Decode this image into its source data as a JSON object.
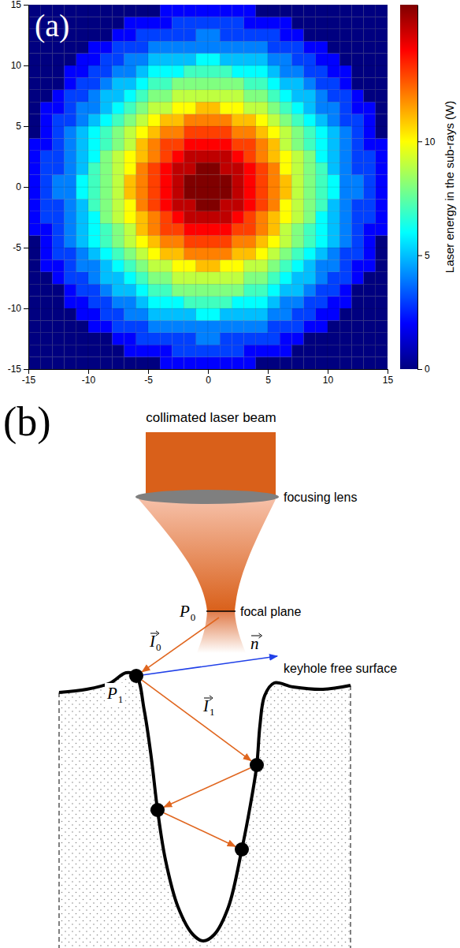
{
  "chart_data": {
    "type": "heatmap",
    "annotations": [
      "(a)"
    ],
    "colorbar_label": "Laser energy in the sub-rays (W)",
    "color": "jet",
    "xlim": [
      -15,
      15
    ],
    "ylim": [
      -15,
      15
    ],
    "xticks": [
      -15,
      -10,
      -5,
      0,
      5,
      10,
      15
    ],
    "yticks": [
      -15,
      -10,
      -5,
      0,
      5,
      10,
      15
    ],
    "clim": [
      0,
      16
    ],
    "cticks": [
      0,
      5,
      10
    ],
    "x_edges": [
      -15,
      -14,
      -13,
      -12,
      -11,
      -10,
      -9,
      -8,
      -7,
      -6,
      -5,
      -4,
      -3,
      -2,
      -1,
      0,
      1,
      2,
      3,
      4,
      5,
      6,
      7,
      8,
      9,
      10,
      11,
      12,
      13,
      14,
      15
    ],
    "y_edges": [
      -15,
      -14,
      -13,
      -12,
      -11,
      -10,
      -9,
      -8,
      -7,
      -6,
      -5,
      -4,
      -3,
      -2,
      -1,
      0,
      1,
      2,
      3,
      4,
      5,
      6,
      7,
      8,
      9,
      10,
      11,
      12,
      13,
      14,
      15
    ],
    "values": [
      [
        0,
        0,
        0,
        0,
        0,
        0,
        0,
        0,
        0,
        0,
        0,
        2,
        2,
        2,
        2,
        2,
        2,
        2,
        2,
        0,
        0,
        0,
        0,
        0,
        0,
        0,
        0,
        0,
        0,
        0
      ],
      [
        0,
        0,
        0,
        0,
        0,
        0,
        0,
        0,
        2,
        2,
        2,
        2,
        3,
        3,
        3,
        3,
        3,
        3,
        2,
        2,
        2,
        2,
        0,
        0,
        0,
        0,
        0,
        0,
        0,
        0
      ],
      [
        0,
        0,
        0,
        0,
        0,
        0,
        0,
        2,
        2,
        3,
        3,
        3,
        3,
        3,
        4,
        4,
        3,
        3,
        3,
        3,
        3,
        2,
        2,
        0,
        0,
        0,
        0,
        0,
        0,
        0
      ],
      [
        0,
        0,
        0,
        0,
        0,
        2,
        2,
        3,
        3,
        3,
        4,
        4,
        4,
        4,
        4,
        4,
        4,
        4,
        4,
        4,
        3,
        3,
        3,
        2,
        2,
        0,
        0,
        0,
        0,
        0
      ],
      [
        0,
        0,
        0,
        0,
        2,
        2,
        3,
        3,
        4,
        4,
        5,
        5,
        5,
        5,
        6,
        6,
        5,
        5,
        5,
        5,
        4,
        4,
        3,
        3,
        2,
        2,
        0,
        0,
        0,
        0
      ],
      [
        0,
        0,
        0,
        2,
        2,
        3,
        3,
        4,
        4,
        5,
        6,
        6,
        6,
        7,
        7,
        7,
        7,
        6,
        6,
        6,
        5,
        4,
        4,
        3,
        3,
        2,
        2,
        0,
        0,
        0
      ],
      [
        0,
        0,
        0,
        2,
        3,
        3,
        4,
        5,
        5,
        6,
        7,
        7,
        8,
        8,
        8,
        8,
        8,
        8,
        7,
        7,
        6,
        5,
        5,
        4,
        3,
        3,
        2,
        0,
        0,
        0
      ],
      [
        0,
        0,
        2,
        3,
        3,
        4,
        5,
        5,
        6,
        7,
        8,
        8,
        9,
        9,
        9,
        9,
        9,
        9,
        8,
        8,
        7,
        6,
        5,
        5,
        4,
        3,
        3,
        2,
        0,
        0
      ],
      [
        0,
        2,
        2,
        3,
        4,
        4,
        5,
        6,
        7,
        8,
        9,
        9,
        10,
        10,
        11,
        11,
        10,
        10,
        9,
        9,
        8,
        7,
        6,
        5,
        4,
        4,
        3,
        2,
        2,
        0
      ],
      [
        0,
        2,
        3,
        3,
        4,
        5,
        6,
        7,
        8,
        9,
        10,
        11,
        11,
        12,
        12,
        12,
        12,
        11,
        11,
        10,
        9,
        8,
        7,
        6,
        5,
        4,
        3,
        3,
        2,
        0
      ],
      [
        0,
        2,
        3,
        4,
        5,
        6,
        7,
        8,
        9,
        10,
        11,
        12,
        12,
        13,
        13,
        13,
        13,
        12,
        12,
        11,
        10,
        9,
        8,
        7,
        6,
        5,
        4,
        3,
        2,
        0
      ],
      [
        2,
        2,
        3,
        4,
        5,
        6,
        7,
        8,
        9,
        11,
        12,
        13,
        13,
        14,
        14,
        14,
        14,
        13,
        13,
        12,
        11,
        9,
        8,
        7,
        6,
        5,
        4,
        3,
        2,
        2
      ],
      [
        2,
        3,
        3,
        4,
        5,
        6,
        8,
        9,
        10,
        11,
        12,
        13,
        14,
        15,
        15,
        15,
        15,
        14,
        13,
        12,
        11,
        10,
        9,
        8,
        6,
        5,
        4,
        3,
        3,
        2
      ],
      [
        2,
        3,
        3,
        4,
        5,
        7,
        8,
        9,
        10,
        12,
        13,
        14,
        15,
        15,
        16,
        16,
        15,
        15,
        14,
        13,
        12,
        10,
        9,
        8,
        7,
        5,
        4,
        3,
        3,
        2
      ],
      [
        2,
        3,
        4,
        4,
        6,
        7,
        8,
        9,
        11,
        12,
        13,
        14,
        15,
        16,
        16,
        16,
        16,
        15,
        14,
        13,
        12,
        11,
        9,
        8,
        7,
        6,
        4,
        4,
        3,
        2
      ],
      [
        2,
        3,
        4,
        4,
        6,
        7,
        8,
        9,
        11,
        12,
        13,
        14,
        15,
        16,
        16,
        16,
        16,
        15,
        14,
        13,
        12,
        11,
        9,
        8,
        7,
        6,
        4,
        4,
        3,
        2
      ],
      [
        2,
        3,
        3,
        4,
        5,
        7,
        8,
        9,
        10,
        12,
        13,
        14,
        15,
        15,
        16,
        16,
        15,
        15,
        14,
        13,
        12,
        10,
        9,
        8,
        7,
        5,
        4,
        3,
        3,
        2
      ],
      [
        2,
        3,
        3,
        4,
        5,
        6,
        8,
        9,
        10,
        11,
        12,
        13,
        14,
        15,
        15,
        15,
        15,
        14,
        13,
        12,
        11,
        10,
        9,
        8,
        6,
        5,
        4,
        3,
        3,
        2
      ],
      [
        2,
        2,
        3,
        4,
        5,
        6,
        7,
        8,
        9,
        11,
        12,
        13,
        13,
        14,
        14,
        14,
        14,
        13,
        13,
        12,
        11,
        9,
        8,
        7,
        6,
        5,
        4,
        3,
        2,
        2
      ],
      [
        0,
        2,
        3,
        4,
        5,
        6,
        7,
        8,
        9,
        10,
        11,
        12,
        12,
        13,
        13,
        13,
        13,
        12,
        12,
        11,
        10,
        9,
        8,
        7,
        6,
        5,
        4,
        3,
        2,
        0
      ],
      [
        0,
        2,
        3,
        3,
        4,
        5,
        6,
        7,
        8,
        9,
        10,
        11,
        11,
        12,
        12,
        12,
        12,
        11,
        11,
        10,
        9,
        8,
        7,
        6,
        5,
        4,
        3,
        3,
        2,
        0
      ],
      [
        0,
        2,
        2,
        3,
        4,
        4,
        5,
        6,
        7,
        8,
        9,
        9,
        10,
        10,
        11,
        11,
        10,
        10,
        9,
        9,
        8,
        7,
        6,
        5,
        4,
        4,
        3,
        2,
        2,
        0
      ],
      [
        0,
        0,
        2,
        3,
        3,
        4,
        5,
        5,
        6,
        7,
        8,
        8,
        9,
        9,
        9,
        9,
        9,
        9,
        8,
        8,
        7,
        6,
        5,
        5,
        4,
        3,
        3,
        2,
        0,
        0
      ],
      [
        0,
        0,
        0,
        2,
        3,
        3,
        4,
        5,
        5,
        6,
        7,
        7,
        8,
        8,
        8,
        8,
        8,
        8,
        7,
        7,
        6,
        5,
        5,
        4,
        3,
        3,
        2,
        0,
        0,
        0
      ],
      [
        0,
        0,
        0,
        2,
        2,
        3,
        3,
        4,
        4,
        5,
        6,
        6,
        6,
        7,
        7,
        7,
        7,
        6,
        6,
        6,
        5,
        4,
        4,
        3,
        3,
        2,
        2,
        0,
        0,
        0
      ],
      [
        0,
        0,
        0,
        0,
        2,
        2,
        3,
        3,
        4,
        4,
        5,
        5,
        5,
        5,
        6,
        6,
        5,
        5,
        5,
        5,
        4,
        4,
        3,
        3,
        2,
        2,
        0,
        0,
        0,
        0
      ],
      [
        0,
        0,
        0,
        0,
        0,
        2,
        2,
        3,
        3,
        3,
        4,
        4,
        4,
        4,
        4,
        4,
        4,
        4,
        4,
        4,
        3,
        3,
        3,
        2,
        2,
        0,
        0,
        0,
        0,
        0
      ],
      [
        0,
        0,
        0,
        0,
        0,
        0,
        0,
        2,
        2,
        3,
        3,
        3,
        3,
        3,
        4,
        4,
        3,
        3,
        3,
        3,
        3,
        2,
        2,
        0,
        0,
        0,
        0,
        0,
        0,
        0
      ],
      [
        0,
        0,
        0,
        0,
        0,
        0,
        0,
        0,
        2,
        2,
        2,
        2,
        3,
        3,
        3,
        3,
        3,
        3,
        2,
        2,
        2,
        2,
        0,
        0,
        0,
        0,
        0,
        0,
        0,
        0
      ],
      [
        0,
        0,
        0,
        0,
        0,
        0,
        0,
        0,
        0,
        0,
        0,
        2,
        2,
        2,
        2,
        2,
        2,
        2,
        2,
        0,
        0,
        0,
        0,
        0,
        0,
        0,
        0,
        0,
        0,
        0
      ]
    ]
  },
  "diagram": {
    "panel_label": "(b)",
    "beam_label": "collimated laser beam",
    "lens_label": "focusing lens",
    "focal_plane_label": "focal plane",
    "surface_label": "keyhole free surface",
    "symbols": {
      "P0": {
        "text": "P",
        "sub": "0"
      },
      "I0": {
        "text": "I",
        "sub": "0",
        "vector": true
      },
      "n": {
        "text": "n",
        "vector": true
      },
      "P1": {
        "text": "P",
        "sub": "1"
      },
      "I1": {
        "text": "I",
        "sub": "1",
        "vector": true
      }
    }
  }
}
